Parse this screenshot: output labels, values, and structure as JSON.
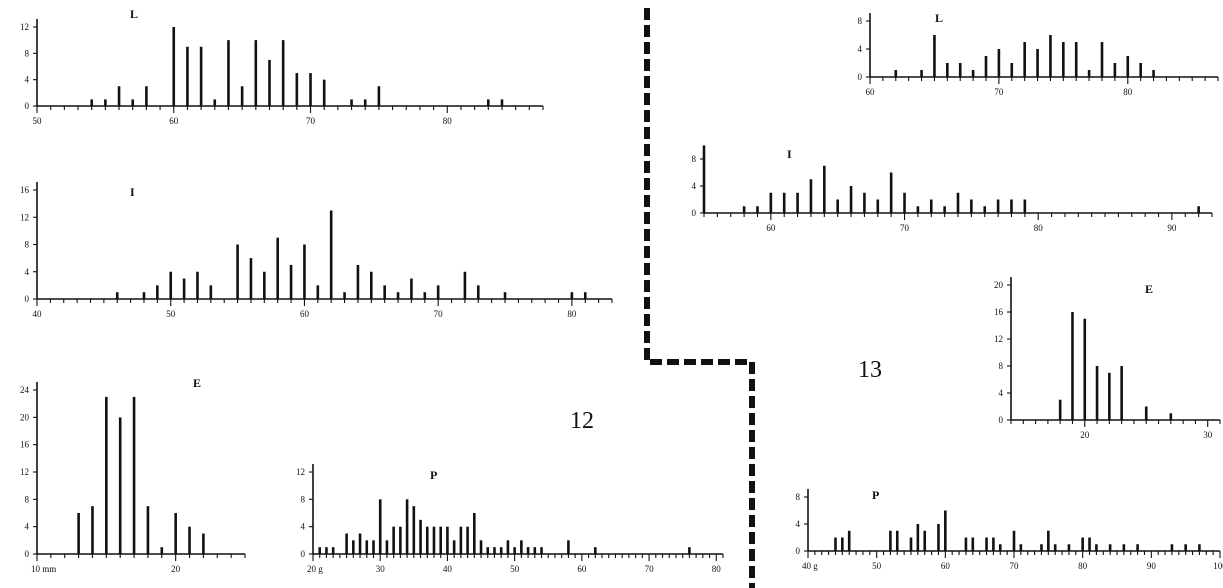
{
  "figures": [
    {
      "number": "12"
    },
    {
      "number": "13"
    }
  ],
  "chart_data": [
    {
      "figure": "12",
      "panel": "L",
      "type": "bar",
      "xlim": [
        50,
        87
      ],
      "ylim": [
        0,
        12
      ],
      "x_ticks": [
        "50",
        "60",
        "70",
        "80"
      ],
      "y_ticks": [
        "0",
        "4",
        "8",
        "12"
      ],
      "values": [
        [
          54,
          1
        ],
        [
          55,
          1
        ],
        [
          56,
          3
        ],
        [
          57,
          1
        ],
        [
          58,
          3
        ],
        [
          60,
          12
        ],
        [
          61,
          9
        ],
        [
          62,
          9
        ],
        [
          63,
          1
        ],
        [
          64,
          10
        ],
        [
          65,
          3
        ],
        [
          66,
          10
        ],
        [
          67,
          7
        ],
        [
          68,
          10
        ],
        [
          69,
          5
        ],
        [
          70,
          5
        ],
        [
          71,
          4
        ],
        [
          73,
          1
        ],
        [
          74,
          1
        ],
        [
          75,
          3
        ],
        [
          83,
          1
        ],
        [
          84,
          1
        ]
      ]
    },
    {
      "figure": "12",
      "panel": "I",
      "type": "bar",
      "xlim": [
        40,
        83
      ],
      "ylim": [
        0,
        16
      ],
      "x_ticks": [
        "40",
        "50",
        "60",
        "70",
        "80"
      ],
      "y_ticks": [
        "0",
        "4",
        "8",
        "12",
        "16"
      ],
      "values": [
        [
          46,
          1
        ],
        [
          48,
          1
        ],
        [
          49,
          2
        ],
        [
          50,
          4
        ],
        [
          51,
          3
        ],
        [
          52,
          4
        ],
        [
          53,
          2
        ],
        [
          55,
          8
        ],
        [
          56,
          6
        ],
        [
          57,
          4
        ],
        [
          58,
          9
        ],
        [
          59,
          5
        ],
        [
          60,
          8
        ],
        [
          61,
          2
        ],
        [
          62,
          13
        ],
        [
          63,
          1
        ],
        [
          64,
          5
        ],
        [
          65,
          4
        ],
        [
          66,
          2
        ],
        [
          67,
          1
        ],
        [
          68,
          3
        ],
        [
          69,
          1
        ],
        [
          70,
          2
        ],
        [
          72,
          4
        ],
        [
          73,
          2
        ],
        [
          75,
          1
        ],
        [
          80,
          1
        ],
        [
          81,
          1
        ]
      ]
    },
    {
      "figure": "12",
      "panel": "E",
      "type": "bar",
      "xlim": [
        10,
        25
      ],
      "ylim": [
        0,
        24
      ],
      "x_ticks": [
        "10 mm",
        "20"
      ],
      "y_ticks": [
        "0",
        "4",
        "8",
        "12",
        "16",
        "20",
        "24"
      ],
      "values": [
        [
          13,
          6
        ],
        [
          14,
          7
        ],
        [
          15,
          23
        ],
        [
          16,
          20
        ],
        [
          17,
          23
        ],
        [
          18,
          7
        ],
        [
          19,
          1
        ],
        [
          20,
          6
        ],
        [
          21,
          4
        ],
        [
          22,
          3
        ]
      ]
    },
    {
      "figure": "12",
      "panel": "P",
      "type": "bar",
      "xlim": [
        20,
        81
      ],
      "ylim": [
        0,
        12
      ],
      "x_ticks": [
        "20 g",
        "30",
        "40",
        "50",
        "60",
        "70",
        "80"
      ],
      "y_ticks": [
        "0",
        "4",
        "8",
        "12"
      ],
      "values": [
        [
          21,
          1
        ],
        [
          22,
          1
        ],
        [
          23,
          1
        ],
        [
          25,
          3
        ],
        [
          26,
          2
        ],
        [
          27,
          3
        ],
        [
          28,
          2
        ],
        [
          29,
          2
        ],
        [
          30,
          8
        ],
        [
          31,
          2
        ],
        [
          32,
          4
        ],
        [
          33,
          4
        ],
        [
          34,
          8
        ],
        [
          35,
          7
        ],
        [
          36,
          5
        ],
        [
          37,
          4
        ],
        [
          38,
          4
        ],
        [
          39,
          4
        ],
        [
          40,
          4
        ],
        [
          41,
          2
        ],
        [
          42,
          4
        ],
        [
          43,
          4
        ],
        [
          44,
          6
        ],
        [
          45,
          2
        ],
        [
          46,
          1
        ],
        [
          47,
          1
        ],
        [
          48,
          1
        ],
        [
          49,
          2
        ],
        [
          50,
          1
        ],
        [
          51,
          2
        ],
        [
          52,
          1
        ],
        [
          53,
          1
        ],
        [
          54,
          1
        ],
        [
          58,
          2
        ],
        [
          62,
          1
        ],
        [
          76,
          1
        ]
      ]
    },
    {
      "figure": "13",
      "panel": "L",
      "type": "bar",
      "xlim": [
        60,
        87
      ],
      "ylim": [
        0,
        8
      ],
      "x_ticks": [
        "60",
        "70",
        "80"
      ],
      "y_ticks": [
        "0",
        "4",
        "8"
      ],
      "values": [
        [
          62,
          1
        ],
        [
          64,
          1
        ],
        [
          65,
          6
        ],
        [
          66,
          2
        ],
        [
          67,
          2
        ],
        [
          68,
          1
        ],
        [
          69,
          3
        ],
        [
          70,
          4
        ],
        [
          71,
          2
        ],
        [
          72,
          5
        ],
        [
          73,
          4
        ],
        [
          74,
          6
        ],
        [
          75,
          5
        ],
        [
          76,
          5
        ],
        [
          77,
          1
        ],
        [
          78,
          5
        ],
        [
          79,
          2
        ],
        [
          80,
          3
        ],
        [
          81,
          2
        ],
        [
          82,
          1
        ]
      ]
    },
    {
      "figure": "13",
      "panel": "I",
      "type": "bar",
      "xlim": [
        55,
        93
      ],
      "ylim": [
        0,
        8
      ],
      "x_ticks": [
        "60",
        "70",
        "80",
        "90"
      ],
      "y_ticks": [
        "0",
        "4",
        "8"
      ],
      "values": [
        [
          55,
          10
        ],
        [
          58,
          1
        ],
        [
          59,
          1
        ],
        [
          60,
          3
        ],
        [
          61,
          3
        ],
        [
          62,
          3
        ],
        [
          63,
          5
        ],
        [
          64,
          7
        ],
        [
          65,
          2
        ],
        [
          66,
          4
        ],
        [
          67,
          3
        ],
        [
          68,
          2
        ],
        [
          69,
          6
        ],
        [
          70,
          3
        ],
        [
          71,
          1
        ],
        [
          72,
          2
        ],
        [
          73,
          1
        ],
        [
          74,
          3
        ],
        [
          75,
          2
        ],
        [
          76,
          1
        ],
        [
          77,
          2
        ],
        [
          78,
          2
        ],
        [
          79,
          2
        ],
        [
          92,
          1
        ]
      ]
    },
    {
      "figure": "13",
      "panel": "E",
      "type": "bar",
      "xlim": [
        14,
        31
      ],
      "ylim": [
        0,
        20
      ],
      "x_ticks": [
        "20",
        "30"
      ],
      "y_ticks": [
        "0",
        "4",
        "8",
        "12",
        "16",
        "20"
      ],
      "values": [
        [
          18,
          3
        ],
        [
          19,
          16
        ],
        [
          20,
          15
        ],
        [
          21,
          8
        ],
        [
          22,
          7
        ],
        [
          23,
          8
        ],
        [
          25,
          2
        ],
        [
          27,
          1
        ]
      ]
    },
    {
      "figure": "13",
      "panel": "P",
      "type": "bar",
      "xlim": [
        40,
        100
      ],
      "ylim": [
        0,
        8
      ],
      "x_ticks": [
        "40 g",
        "50",
        "60",
        "70",
        "80",
        "90",
        "100"
      ],
      "y_ticks": [
        "0",
        "4",
        "8"
      ],
      "values": [
        [
          44,
          2
        ],
        [
          45,
          2
        ],
        [
          46,
          3
        ],
        [
          52,
          3
        ],
        [
          53,
          3
        ],
        [
          55,
          2
        ],
        [
          56,
          4
        ],
        [
          57,
          3
        ],
        [
          59,
          4
        ],
        [
          60,
          6
        ],
        [
          63,
          2
        ],
        [
          64,
          2
        ],
        [
          66,
          2
        ],
        [
          67,
          2
        ],
        [
          68,
          1
        ],
        [
          70,
          3
        ],
        [
          71,
          1
        ],
        [
          74,
          1
        ],
        [
          75,
          3
        ],
        [
          76,
          1
        ],
        [
          78,
          1
        ],
        [
          80,
          2
        ],
        [
          81,
          2
        ],
        [
          82,
          1
        ],
        [
          84,
          1
        ],
        [
          86,
          1
        ],
        [
          88,
          1
        ],
        [
          93,
          1
        ],
        [
          95,
          1
        ],
        [
          97,
          1
        ]
      ]
    }
  ]
}
